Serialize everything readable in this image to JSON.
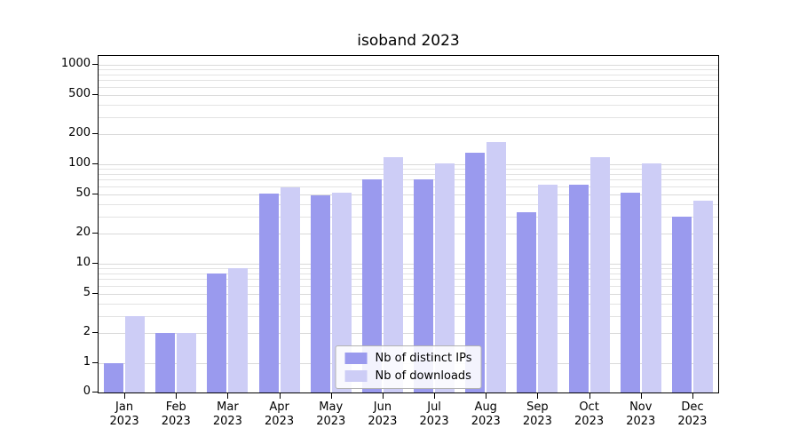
{
  "title": "isoband 2023",
  "chart_data": {
    "type": "bar",
    "title": "isoband 2023",
    "xlabel": "",
    "ylabel": "",
    "yscale": "symlog",
    "grid": true,
    "legend_position": "lower center",
    "ylim": [
      0,
      1250
    ],
    "yticks": [
      0,
      1,
      2,
      5,
      10,
      20,
      50,
      100,
      200,
      500,
      1000
    ],
    "categories": [
      "Jan 2023",
      "Feb 2023",
      "Mar 2023",
      "Apr 2023",
      "May 2023",
      "Jun 2023",
      "Jul 2023",
      "Aug 2023",
      "Sep 2023",
      "Oct 2023",
      "Nov 2023",
      "Dec 2023"
    ],
    "series": [
      {
        "name": "Nb of distinct IPs",
        "color": "#9a9aee",
        "values": [
          1,
          2,
          8,
          51,
          49,
          70,
          71,
          130,
          33,
          62,
          52,
          30
        ]
      },
      {
        "name": "Nb of downloads",
        "color": "#cdcdf6",
        "values": [
          3,
          2,
          9,
          59,
          52,
          118,
          103,
          168,
          62,
          119,
          102,
          43
        ]
      }
    ]
  }
}
